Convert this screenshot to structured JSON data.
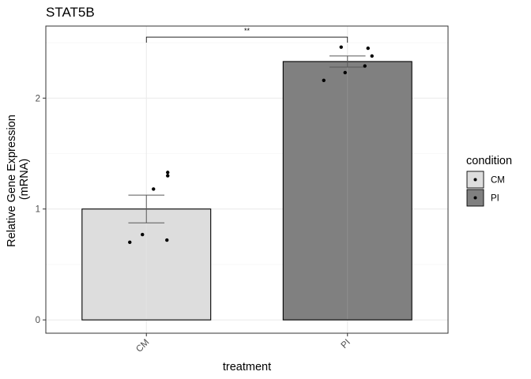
{
  "chart_data": {
    "type": "bar",
    "title": "STAT5B",
    "xlabel": "treatment",
    "ylabel_lines": [
      "Relative Gene Expression",
      "(mRNA)"
    ],
    "categories": [
      "CM",
      "PI"
    ],
    "values": [
      1.0,
      2.33
    ],
    "errors": [
      {
        "low": 0.875,
        "high": 1.125
      },
      {
        "low": 2.28,
        "high": 2.38
      }
    ],
    "points": [
      [
        0.7,
        0.72,
        0.77,
        1.18,
        1.3,
        1.33
      ],
      [
        2.16,
        2.23,
        2.29,
        2.38,
        2.45,
        2.46
      ]
    ],
    "ylim": [
      -0.12,
      2.65
    ],
    "yticks": [
      0,
      1,
      2
    ],
    "ytick_labels": [
      "0",
      "1",
      "2"
    ],
    "grid": true,
    "significance": {
      "label": "**",
      "y": 2.55,
      "from": "CM",
      "to": "PI"
    },
    "legend": {
      "title": "condition",
      "placement": "right",
      "entries": [
        {
          "label": "CM",
          "color": "#dddddd"
        },
        {
          "label": "PI",
          "color": "#808080"
        }
      ]
    },
    "colors": {
      "CM": "#dddddd",
      "PI": "#808080"
    }
  }
}
